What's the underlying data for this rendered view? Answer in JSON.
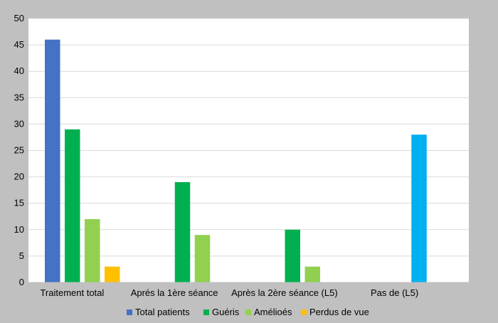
{
  "chart_data": {
    "type": "bar",
    "categories": [
      "Traitement total",
      "Aprés la 1ère séance",
      "Après la 2ère séance (L5)",
      "Pas de (L5)"
    ],
    "series": [
      {
        "name": "Total patients",
        "color": "#4472c4",
        "values": [
          46,
          null,
          null,
          28
        ]
      },
      {
        "name": "Guéris",
        "color": "#00b050",
        "values": [
          29,
          19,
          10,
          null
        ]
      },
      {
        "name": "Amélioés",
        "color": "#92d050",
        "values": [
          12,
          9,
          3,
          null
        ]
      },
      {
        "name": "Perdus de vue",
        "color": "#ffc000",
        "values": [
          3,
          null,
          null,
          null
        ]
      }
    ],
    "bar_color_overrides": [
      {
        "series": 0,
        "category": 3,
        "color": "#00b0f0"
      }
    ],
    "ylim": [
      0,
      50
    ],
    "yticks": [
      0,
      5,
      10,
      15,
      20,
      25,
      30,
      35,
      40,
      45,
      50
    ],
    "grid": true,
    "legend_position": "bottom",
    "plot_background": "#ffffff",
    "chart_background": "#c0c0c0"
  }
}
